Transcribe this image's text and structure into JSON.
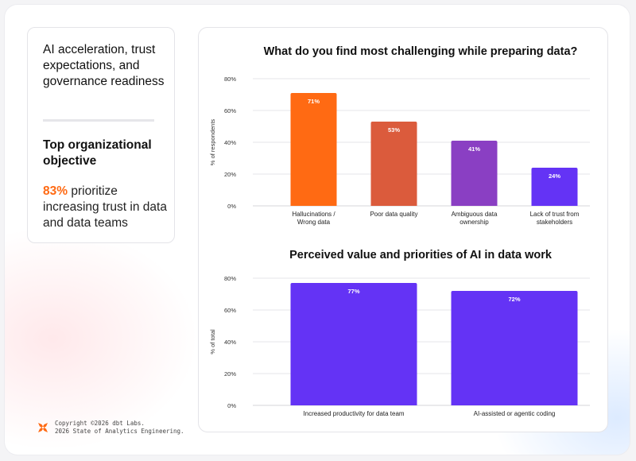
{
  "sidebar": {
    "heading": "AI acceleration, trust expectations, and governance readiness",
    "subheading": "Top organizational objective",
    "stat_value": "83%",
    "stat_text": "prioritize increasing trust in data and data teams"
  },
  "footer": {
    "line1": "Copyright ©2026 dbt Labs.",
    "line2": "2026 State of Analytics Engineering."
  },
  "colors": {
    "accent": "#ff6a13",
    "purple": "#6433f5"
  },
  "chart_data": [
    {
      "type": "bar",
      "title": "What do you find most challenging while preparing data?",
      "ylabel": "% of respondents",
      "ylim": [
        0,
        80
      ],
      "yticks": [
        0,
        20,
        40,
        60,
        80
      ],
      "ytick_labels": [
        "0%",
        "20%",
        "40%",
        "60%",
        "80%"
      ],
      "categories": [
        [
          "Hallucinations /",
          "Wrong data"
        ],
        [
          "Poor data quality"
        ],
        [
          "Ambiguous data",
          "ownership"
        ],
        [
          "Lack of trust from",
          "stakeholders"
        ]
      ],
      "values": [
        71,
        53,
        41,
        24
      ],
      "value_labels": [
        "71%",
        "53%",
        "41%",
        "24%"
      ],
      "colors": [
        "#ff6a13",
        "#db5b3c",
        "#8a3fc3",
        "#6433f5"
      ]
    },
    {
      "type": "bar",
      "title": "Perceived value and priorities of AI in data work",
      "ylabel": "% of total",
      "ylim": [
        0,
        80
      ],
      "yticks": [
        0,
        20,
        40,
        60,
        80
      ],
      "ytick_labels": [
        "0%",
        "20%",
        "40%",
        "60%",
        "80%"
      ],
      "categories": [
        [
          "Increased productivity for data team"
        ],
        [
          "AI-assisted or agentic coding"
        ]
      ],
      "values": [
        77,
        72
      ],
      "value_labels": [
        "77%",
        "72%"
      ],
      "colors": [
        "#6433f5",
        "#6433f5"
      ]
    }
  ]
}
